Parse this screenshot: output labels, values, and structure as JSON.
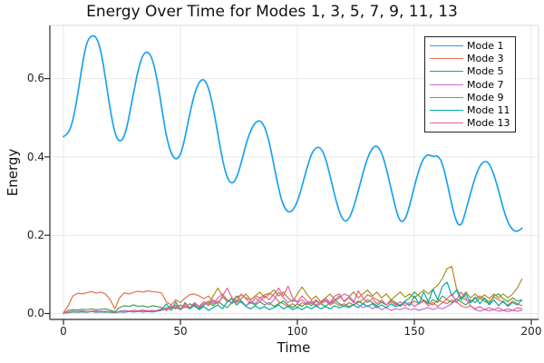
{
  "chart_data": {
    "type": "line",
    "title": "Energy Over Time for Modes 1, 3, 5, 7, 9, 11, 13",
    "xlabel": "Time",
    "ylabel": "Energy",
    "xlim": [
      -6,
      203
    ],
    "ylim": [
      -0.015,
      0.737
    ],
    "grid": true,
    "legend_position": "top-right",
    "x_ticks": [
      0,
      50,
      100,
      150,
      200
    ],
    "x_tick_labels": [
      "0",
      "50",
      "100",
      "150",
      "200"
    ],
    "y_ticks": [
      0.0,
      0.2,
      0.4,
      0.6
    ],
    "y_tick_labels": [
      "0.0",
      "0.2",
      "0.4",
      "0.6"
    ],
    "t_start": 0,
    "t_step": 2,
    "series": [
      {
        "name": "Mode 1",
        "color": "#1BA2F0",
        "values": [
          0.452,
          0.458,
          0.49,
          0.555,
          0.635,
          0.695,
          0.71,
          0.708,
          0.672,
          0.6,
          0.52,
          0.458,
          0.437,
          0.45,
          0.5,
          0.565,
          0.625,
          0.662,
          0.67,
          0.652,
          0.6,
          0.525,
          0.452,
          0.408,
          0.392,
          0.403,
          0.45,
          0.51,
          0.562,
          0.592,
          0.6,
          0.578,
          0.528,
          0.458,
          0.392,
          0.345,
          0.33,
          0.345,
          0.385,
          0.432,
          0.468,
          0.488,
          0.494,
          0.478,
          0.438,
          0.378,
          0.318,
          0.275,
          0.258,
          0.262,
          0.285,
          0.325,
          0.37,
          0.408,
          0.425,
          0.424,
          0.398,
          0.352,
          0.3,
          0.258,
          0.234,
          0.24,
          0.27,
          0.312,
          0.358,
          0.398,
          0.423,
          0.43,
          0.412,
          0.372,
          0.32,
          0.268,
          0.233,
          0.238,
          0.275,
          0.325,
          0.368,
          0.398,
          0.407,
          0.4,
          0.404,
          0.385,
          0.335,
          0.278,
          0.232,
          0.222,
          0.262,
          0.307,
          0.348,
          0.378,
          0.39,
          0.384,
          0.356,
          0.314,
          0.268,
          0.232,
          0.213,
          0.209,
          0.218
        ]
      },
      {
        "name": "Mode 3",
        "color": "#E26E47",
        "values": [
          0.002,
          0.02,
          0.045,
          0.052,
          0.05,
          0.053,
          0.056,
          0.052,
          0.055,
          0.05,
          0.035,
          0.012,
          0.04,
          0.053,
          0.05,
          0.054,
          0.057,
          0.055,
          0.058,
          0.056,
          0.055,
          0.052,
          0.03,
          0.022,
          0.035,
          0.028,
          0.04,
          0.048,
          0.05,
          0.045,
          0.038,
          0.045,
          0.03,
          0.025,
          0.042,
          0.035,
          0.028,
          0.042,
          0.048,
          0.04,
          0.035,
          0.045,
          0.04,
          0.048,
          0.052,
          0.045,
          0.03,
          0.025,
          0.018,
          0.025,
          0.015,
          0.028,
          0.022,
          0.03,
          0.018,
          0.025,
          0.032,
          0.022,
          0.028,
          0.02,
          0.025,
          0.018,
          0.022,
          0.028,
          0.035,
          0.048,
          0.042,
          0.035,
          0.028,
          0.022,
          0.03,
          0.025,
          0.018,
          0.028,
          0.022,
          0.032,
          0.025,
          0.035,
          0.028,
          0.022,
          0.035,
          0.03,
          0.025,
          0.035,
          0.028,
          0.042,
          0.035,
          0.028,
          0.038,
          0.045,
          0.038,
          0.03,
          0.042,
          0.035,
          0.028,
          0.022,
          0.032,
          0.025,
          0.02
        ]
      },
      {
        "name": "Mode 5",
        "color": "#3DA44D",
        "values": [
          0.001,
          0.008,
          0.01,
          0.009,
          0.011,
          0.01,
          0.012,
          0.01,
          0.011,
          0.012,
          0.008,
          0.005,
          0.015,
          0.02,
          0.018,
          0.022,
          0.018,
          0.02,
          0.016,
          0.02,
          0.018,
          0.015,
          0.008,
          0.018,
          0.012,
          0.022,
          0.015,
          0.025,
          0.018,
          0.012,
          0.022,
          0.028,
          0.02,
          0.032,
          0.022,
          0.015,
          0.028,
          0.045,
          0.032,
          0.02,
          0.028,
          0.022,
          0.03,
          0.022,
          0.028,
          0.018,
          0.025,
          0.032,
          0.022,
          0.015,
          0.025,
          0.018,
          0.028,
          0.02,
          0.032,
          0.025,
          0.018,
          0.028,
          0.035,
          0.025,
          0.018,
          0.028,
          0.022,
          0.032,
          0.025,
          0.035,
          0.028,
          0.02,
          0.03,
          0.022,
          0.035,
          0.028,
          0.02,
          0.032,
          0.04,
          0.055,
          0.045,
          0.032,
          0.025,
          0.035,
          0.028,
          0.045,
          0.035,
          0.028,
          0.038,
          0.03,
          0.022,
          0.035,
          0.028,
          0.04,
          0.032,
          0.025,
          0.045,
          0.05,
          0.038,
          0.03,
          0.04,
          0.032,
          0.035
        ]
      },
      {
        "name": "Mode 7",
        "color": "#C270D2",
        "values": [
          0.001,
          0.004,
          0.006,
          0.005,
          0.007,
          0.005,
          0.006,
          0.007,
          0.005,
          0.006,
          0.004,
          0.003,
          0.006,
          0.008,
          0.006,
          0.008,
          0.007,
          0.009,
          0.007,
          0.008,
          0.006,
          0.008,
          0.012,
          0.02,
          0.015,
          0.01,
          0.018,
          0.012,
          0.02,
          0.015,
          0.025,
          0.032,
          0.025,
          0.04,
          0.05,
          0.035,
          0.025,
          0.035,
          0.028,
          0.02,
          0.032,
          0.025,
          0.04,
          0.03,
          0.022,
          0.035,
          0.055,
          0.04,
          0.028,
          0.035,
          0.028,
          0.035,
          0.025,
          0.032,
          0.022,
          0.03,
          0.035,
          0.025,
          0.032,
          0.04,
          0.05,
          0.045,
          0.032,
          0.022,
          0.015,
          0.02,
          0.012,
          0.018,
          0.01,
          0.015,
          0.008,
          0.012,
          0.01,
          0.015,
          0.01,
          0.012,
          0.008,
          0.012,
          0.015,
          0.01,
          0.015,
          0.012,
          0.018,
          0.025,
          0.035,
          0.055,
          0.04,
          0.02,
          0.01,
          0.006,
          0.01,
          0.007,
          0.01,
          0.006,
          0.008,
          0.005,
          0.008,
          0.006,
          0.008
        ]
      },
      {
        "name": "Mode 9",
        "color": "#AC8D18",
        "values": [
          0.001,
          0.003,
          0.005,
          0.004,
          0.005,
          0.004,
          0.006,
          0.004,
          0.005,
          0.004,
          0.003,
          0.002,
          0.005,
          0.004,
          0.006,
          0.005,
          0.007,
          0.005,
          0.006,
          0.005,
          0.007,
          0.01,
          0.015,
          0.01,
          0.018,
          0.012,
          0.02,
          0.015,
          0.025,
          0.018,
          0.03,
          0.022,
          0.045,
          0.065,
          0.045,
          0.03,
          0.04,
          0.028,
          0.038,
          0.05,
          0.035,
          0.045,
          0.055,
          0.04,
          0.05,
          0.06,
          0.045,
          0.055,
          0.04,
          0.03,
          0.05,
          0.068,
          0.05,
          0.035,
          0.045,
          0.03,
          0.04,
          0.05,
          0.035,
          0.045,
          0.032,
          0.042,
          0.055,
          0.04,
          0.05,
          0.06,
          0.045,
          0.055,
          0.04,
          0.05,
          0.035,
          0.045,
          0.055,
          0.042,
          0.05,
          0.04,
          0.05,
          0.06,
          0.05,
          0.062,
          0.072,
          0.09,
          0.115,
          0.12,
          0.065,
          0.04,
          0.055,
          0.04,
          0.05,
          0.038,
          0.048,
          0.038,
          0.05,
          0.04,
          0.05,
          0.04,
          0.05,
          0.065,
          0.088
        ]
      },
      {
        "name": "Mode 11",
        "color": "#00A9AD",
        "values": [
          0.001,
          0.002,
          0.004,
          0.003,
          0.004,
          0.003,
          0.005,
          0.003,
          0.004,
          0.003,
          0.004,
          0.002,
          0.004,
          0.003,
          0.005,
          0.004,
          0.005,
          0.004,
          0.005,
          0.004,
          0.006,
          0.01,
          0.025,
          0.008,
          0.03,
          0.01,
          0.028,
          0.012,
          0.022,
          0.01,
          0.018,
          0.008,
          0.015,
          0.022,
          0.012,
          0.03,
          0.038,
          0.022,
          0.032,
          0.018,
          0.012,
          0.02,
          0.012,
          0.018,
          0.01,
          0.015,
          0.022,
          0.012,
          0.018,
          0.01,
          0.015,
          0.01,
          0.018,
          0.012,
          0.02,
          0.012,
          0.018,
          0.012,
          0.02,
          0.014,
          0.02,
          0.015,
          0.022,
          0.015,
          0.025,
          0.018,
          0.025,
          0.015,
          0.022,
          0.015,
          0.025,
          0.018,
          0.022,
          0.03,
          0.02,
          0.045,
          0.025,
          0.055,
          0.03,
          0.062,
          0.035,
          0.07,
          0.08,
          0.045,
          0.06,
          0.035,
          0.05,
          0.028,
          0.042,
          0.025,
          0.04,
          0.022,
          0.035,
          0.02,
          0.032,
          0.018,
          0.028,
          0.022,
          0.035
        ]
      },
      {
        "name": "Mode 13",
        "color": "#ED5D92",
        "values": [
          0.001,
          0.003,
          0.005,
          0.004,
          0.006,
          0.004,
          0.005,
          0.004,
          0.006,
          0.004,
          0.005,
          0.003,
          0.005,
          0.004,
          0.006,
          0.005,
          0.006,
          0.005,
          0.007,
          0.005,
          0.008,
          0.012,
          0.008,
          0.015,
          0.022,
          0.012,
          0.025,
          0.015,
          0.028,
          0.018,
          0.03,
          0.02,
          0.035,
          0.025,
          0.045,
          0.065,
          0.04,
          0.03,
          0.05,
          0.038,
          0.025,
          0.04,
          0.03,
          0.045,
          0.035,
          0.05,
          0.065,
          0.045,
          0.07,
          0.04,
          0.03,
          0.045,
          0.032,
          0.025,
          0.035,
          0.025,
          0.04,
          0.028,
          0.045,
          0.05,
          0.03,
          0.04,
          0.028,
          0.058,
          0.04,
          0.028,
          0.038,
          0.025,
          0.035,
          0.022,
          0.032,
          0.022,
          0.03,
          0.02,
          0.028,
          0.018,
          0.025,
          0.032,
          0.02,
          0.028,
          0.018,
          0.028,
          0.038,
          0.05,
          0.03,
          0.02,
          0.015,
          0.02,
          0.012,
          0.018,
          0.01,
          0.015,
          0.01,
          0.015,
          0.008,
          0.012,
          0.008,
          0.015,
          0.012
        ]
      }
    ]
  }
}
